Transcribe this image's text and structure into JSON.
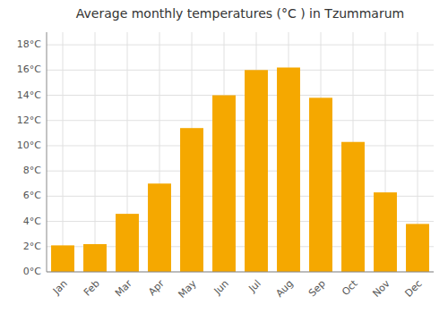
{
  "chart_data": {
    "type": "bar",
    "title": "Average monthly temperatures (°C ) in Tzummarum",
    "categories": [
      "Jan",
      "Feb",
      "Mar",
      "Apr",
      "May",
      "Jun",
      "Jul",
      "Aug",
      "Sep",
      "Oct",
      "Nov",
      "Dec"
    ],
    "values": [
      2.1,
      2.2,
      4.6,
      7.0,
      11.4,
      14.0,
      16.0,
      16.2,
      13.8,
      10.3,
      6.3,
      3.8
    ],
    "color": "#F5A800",
    "ylim": [
      0,
      19
    ],
    "yticks": [
      {
        "value": 0,
        "label": "0°C"
      },
      {
        "value": 2,
        "label": "2°C"
      },
      {
        "value": 4,
        "label": "4°C"
      },
      {
        "value": 6,
        "label": "6°C"
      },
      {
        "value": 8,
        "label": "8°C"
      },
      {
        "value": 10,
        "label": "10°C"
      },
      {
        "value": 12,
        "label": "12°C"
      },
      {
        "value": 14,
        "label": "14°C"
      },
      {
        "value": 16,
        "label": "16°C"
      },
      {
        "value": 18,
        "label": "18°C"
      }
    ],
    "grid": true
  }
}
